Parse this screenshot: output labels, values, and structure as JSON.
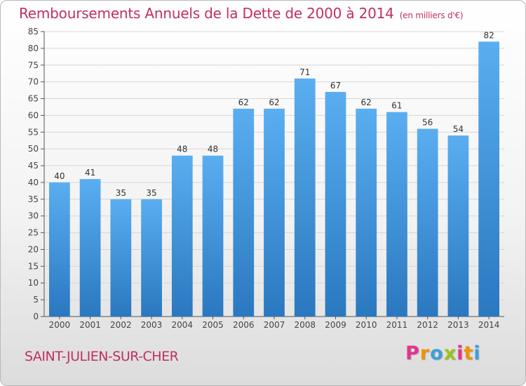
{
  "header": {
    "title": "Remboursements Annuels de la Dette de 2000 à 2014",
    "unit": "(en milliers d'€)"
  },
  "footer": {
    "commune": "SAINT-JULIEN-SUR-CHER",
    "logo_letters": [
      "P",
      "r",
      "o",
      "x",
      "i",
      "t",
      "i"
    ],
    "logo_colors": [
      "#e5348a",
      "#f39200",
      "#3aa0dc",
      "#9ac31c",
      "#e5348a",
      "#f39200",
      "#3aa0dc"
    ]
  },
  "chart_data": {
    "type": "bar",
    "title": "Remboursements Annuels de la Dette de 2000 à 2014",
    "subtitle": "(en milliers d'€)",
    "categories": [
      "2000",
      "2001",
      "2002",
      "2003",
      "2004",
      "2005",
      "2006",
      "2007",
      "2008",
      "2009",
      "2010",
      "2011",
      "2012",
      "2013",
      "2014"
    ],
    "values": [
      40,
      41,
      35,
      35,
      48,
      48,
      62,
      62,
      71,
      67,
      62,
      61,
      56,
      54,
      82
    ],
    "ylim": [
      0,
      85
    ],
    "yticks": [
      0,
      5,
      10,
      15,
      20,
      25,
      30,
      35,
      40,
      45,
      50,
      55,
      60,
      65,
      70,
      75,
      80,
      85
    ],
    "grid": true,
    "bar_color": "#3b8fd6"
  }
}
